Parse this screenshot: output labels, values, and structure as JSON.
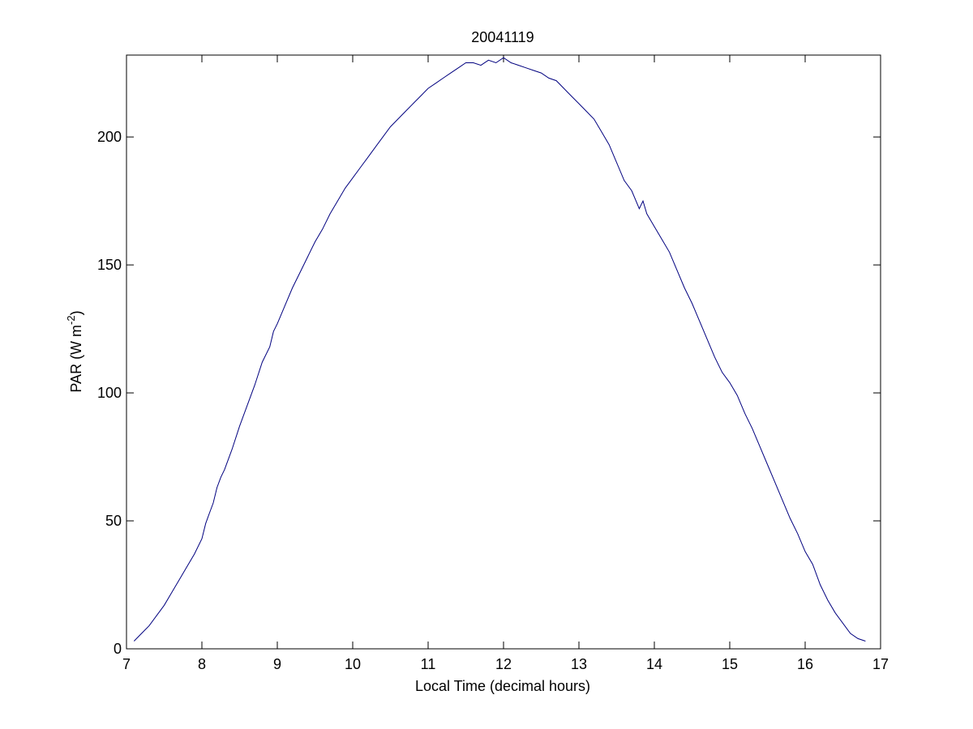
{
  "chart_data": {
    "type": "line",
    "title": "20041119",
    "xlabel": "Local Time (decimal hours)",
    "ylabel": {
      "prefix": "PAR (W m",
      "superscript": "-2",
      "suffix": ")"
    },
    "xlim": [
      7,
      17
    ],
    "ylim": [
      0,
      232
    ],
    "xticks": [
      7,
      8,
      9,
      10,
      11,
      12,
      13,
      14,
      15,
      16,
      17
    ],
    "yticks": [
      0,
      50,
      100,
      150,
      200
    ],
    "grid": false,
    "line_color": "#00007f",
    "series": [
      {
        "x": [
          7.1,
          7.2,
          7.3,
          7.4,
          7.5,
          7.6,
          7.7,
          7.8,
          7.9,
          8.0,
          8.05,
          8.1,
          8.15,
          8.2,
          8.25,
          8.3,
          8.4,
          8.5,
          8.6,
          8.7,
          8.8,
          8.9,
          8.95,
          9.0,
          9.1,
          9.2,
          9.3,
          9.4,
          9.5,
          9.6,
          9.7,
          9.8,
          9.9,
          10.0,
          10.1,
          10.2,
          10.3,
          10.4,
          10.5,
          10.6,
          10.7,
          10.8,
          10.9,
          11.0,
          11.1,
          11.2,
          11.3,
          11.4,
          11.5,
          11.6,
          11.7,
          11.8,
          11.9,
          12.0,
          12.1,
          12.2,
          12.3,
          12.4,
          12.5,
          12.6,
          12.7,
          12.8,
          12.9,
          13.0,
          13.1,
          13.2,
          13.3,
          13.4,
          13.5,
          13.6,
          13.7,
          13.8,
          13.85,
          13.9,
          14.0,
          14.1,
          14.2,
          14.3,
          14.4,
          14.5,
          14.6,
          14.7,
          14.8,
          14.9,
          15.0,
          15.1,
          15.2,
          15.3,
          15.4,
          15.5,
          15.6,
          15.7,
          15.8,
          15.9,
          16.0,
          16.1,
          16.2,
          16.3,
          16.4,
          16.5,
          16.6,
          16.7,
          16.8
        ],
        "y": [
          3,
          6,
          9,
          13,
          17,
          22,
          27,
          32,
          37,
          43,
          49,
          53,
          57,
          63,
          67,
          70,
          78,
          87,
          95,
          103,
          112,
          118,
          124,
          127,
          134,
          141,
          147,
          153,
          159,
          164,
          170,
          175,
          180,
          184,
          188,
          192,
          196,
          200,
          204,
          207,
          210,
          213,
          216,
          219,
          221,
          223,
          225,
          227,
          229,
          229,
          228,
          230,
          229,
          231,
          229,
          228,
          227,
          226,
          225,
          223,
          222,
          219,
          216,
          213,
          210,
          207,
          202,
          197,
          190,
          183,
          179,
          172,
          175,
          170,
          165,
          160,
          155,
          148,
          141,
          135,
          128,
          121,
          114,
          108,
          104,
          99,
          92,
          86,
          79,
          72,
          65,
          58,
          51,
          45,
          38,
          33,
          25,
          19,
          14,
          10,
          6,
          4,
          3
        ]
      }
    ]
  }
}
